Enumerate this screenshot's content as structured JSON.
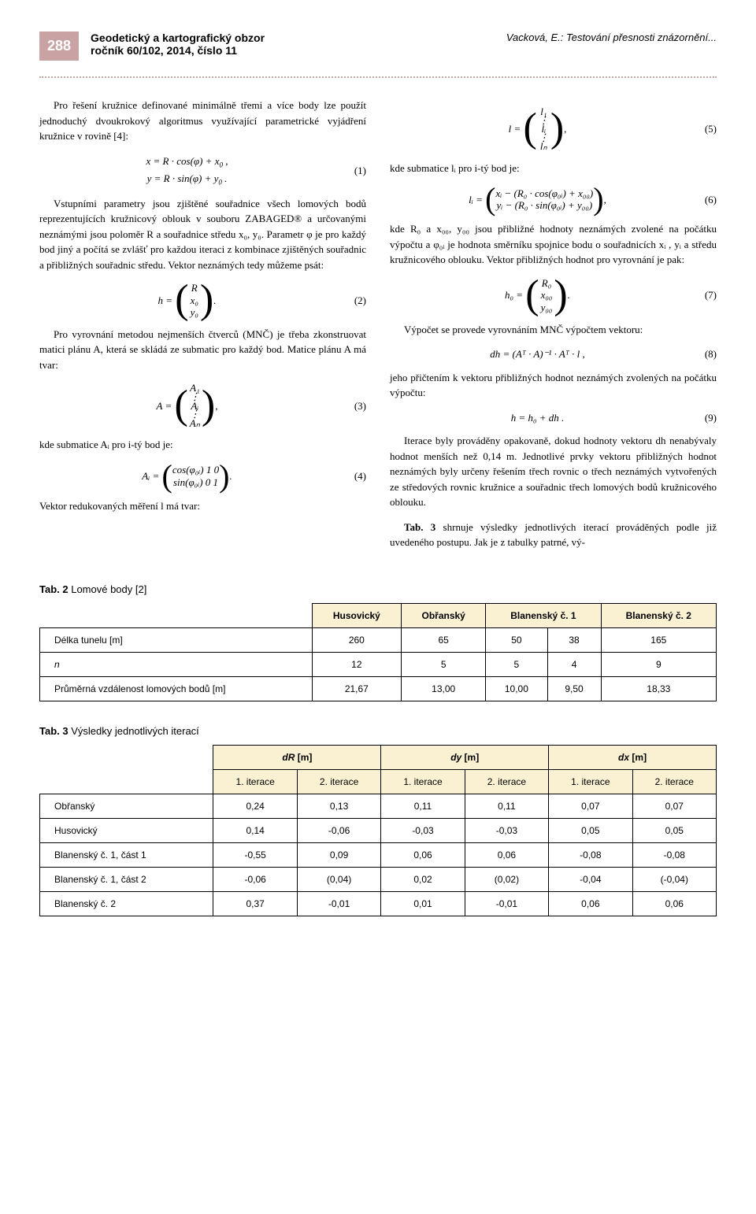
{
  "header": {
    "page_number": "288",
    "journal_title": "Geodetický a kartografický obzor",
    "journal_issue": "ročník 60/102, 2014, číslo 11",
    "author_title": "Vacková, E.: Testování přesnosti znázornění..."
  },
  "leftcol": {
    "p1": "Pro řešení kružnice definované minimálně třemi a více body lze použít jednoduchý dvoukrokový algoritmus využívající parametrické vyjádření kružnice v rovině [4]:",
    "eq1a": "x = R · cos(φ) + x",
    "eq1b": "y = R · sin(φ) + y",
    "eq1num": "(1)",
    "p2": "Vstupními parametry jsou zjištěné souřadnice všech lomových bodů reprezentujících kružnicový oblouk v souboru ZABAGED® a určovanými neznámými jsou poloměr R a souřadnice středu x₀, y₀. Parametr φ je pro každý bod jiný a počítá se zvlášť pro každou iteraci z kombinace zjištěných souřadnic a přibližných souřadnic středu. Vektor neznámých tedy můžeme psát:",
    "eq2_lhs": "h =",
    "eq2_r": "R",
    "eq2_x": "x₀",
    "eq2_y": "y₀",
    "eq2_num": "(2)",
    "p3": "Pro vyrovnání metodou nejmenších čtverců (MNČ) je třeba zkonstruovat matici plánu A, která se skládá ze submatic pro každý bod. Matice plánu A má tvar:",
    "eq3_lhs": "A =",
    "eq3_a1": "A₁",
    "eq3_ai": "Aᵢ",
    "eq3_an": "Aₙ",
    "eq3_num": "(3)",
    "p4": "kde submatice Aᵢ pro i-tý bod je:",
    "eq4_lhs": "Aᵢ  =",
    "eq4_r1": "cos(φ₀ᵢ)  1  0",
    "eq4_r2": "sin(φ₀ᵢ)  0  1",
    "eq4_num": "(4)",
    "p5": "Vektor redukovaných měření l má tvar:"
  },
  "rightcol": {
    "eq5_lhs": "l =",
    "eq5_l1": "l₁",
    "eq5_li": "lᵢ",
    "eq5_ln": "lₙ",
    "eq5_num": "(5)",
    "p1": "kde submatice lᵢ pro i-tý bod je:",
    "eq6_lhs": "lᵢ  =",
    "eq6_r1": "xᵢ − (R₀ · cos(φ₀ᵢ) + x₀₀)",
    "eq6_r2": "yᵢ − (R₀ · sin(φ₀ᵢ) + y₀₀)",
    "eq6_num": "(6)",
    "p2": "kde R₀ a x₀₀, y₀₀ jsou přibližné hodnoty neznámých zvolené na počátku výpočtu a φ₀ᵢ je hodnota směrníku spojnice bodu o souřadnicích xᵢ , yᵢ a středu kružnicového oblouku. Vektor přibližných hodnot pro vyrovnání je pak:",
    "eq7_lhs": "h₀ =",
    "eq7_r": "R₀",
    "eq7_x": "x₀₀",
    "eq7_y": "y₀₀",
    "eq7_num": "(7)",
    "p3": "Výpočet se provede vyrovnáním MNČ výpočtem vektoru:",
    "eq8": "dh = (Aᵀ · A)⁻¹ · Aᵀ · l ,",
    "eq8_num": "(8)",
    "p4": "jeho přičtením k vektoru přibližných hodnot neznámých zvolených na počátku výpočtu:",
    "eq9": "h = h₀ + dh .",
    "eq9_num": "(9)",
    "p5": "Iterace byly prováděny opakovaně, dokud hodnoty vektoru dh nenabývaly hodnot menších než 0,14 m. Jednotlivé prvky vektoru přibližných hodnot neznámých byly určeny řešením třech rovnic o třech neznámých vytvořených ze středových rovnic kružnice a souřadnic třech lomových bodů kružnicového oblouku.",
    "p6a": "Tab. 3",
    "p6b": " shrnuje výsledky jednotlivých iterací prováděných podle již uvedeného postupu. Jak je z tabulky patrné, vý-"
  },
  "table2": {
    "caption_bold": "Tab. 2",
    "caption_rest": " Lomové body [2]",
    "h1": "Husovický",
    "h2": "Obřanský",
    "h3": "Blanenský č. 1",
    "h4": "Blanenský č. 2",
    "r1_label": "Délka tunelu [m]",
    "r1": [
      "260",
      "65",
      "50",
      "38",
      "165"
    ],
    "r2_label": "n",
    "r2": [
      "12",
      "5",
      "5",
      "4",
      "9"
    ],
    "r3_label": "Průměrná vzdálenost lomových bodů [m]",
    "r3": [
      "21,67",
      "13,00",
      "10,00",
      "9,50",
      "18,33"
    ]
  },
  "table3": {
    "caption_bold": "Tab. 3",
    "caption_rest": " Výsledky jednotlivých iterací",
    "h_dR": "dR",
    "h_dy": "dy",
    "h_dx": "dx",
    "unit": " [m]",
    "it1": "1. iterace",
    "it2": "2. iterace",
    "rows": [
      {
        "label": "Obřanský",
        "v": [
          "0,24",
          "0,13",
          "0,11",
          "0,11",
          "0,07",
          "0,07"
        ]
      },
      {
        "label": "Husovický",
        "v": [
          "0,14",
          "-0,06",
          "-0,03",
          "-0,03",
          "0,05",
          "0,05"
        ]
      },
      {
        "label": "Blanenský č. 1, část 1",
        "v": [
          "-0,55",
          "0,09",
          "0,06",
          "0,06",
          "-0,08",
          "-0,08"
        ]
      },
      {
        "label": "Blanenský č. 1, část 2",
        "v": [
          "-0,06",
          "(0,04)",
          "0,02",
          "(0,02)",
          "-0,04",
          "(-0,04)"
        ]
      },
      {
        "label": "Blanenský č. 2",
        "v": [
          "0,37",
          "-0,01",
          "0,01",
          "-0,01",
          "0,06",
          "0,06"
        ]
      }
    ]
  }
}
